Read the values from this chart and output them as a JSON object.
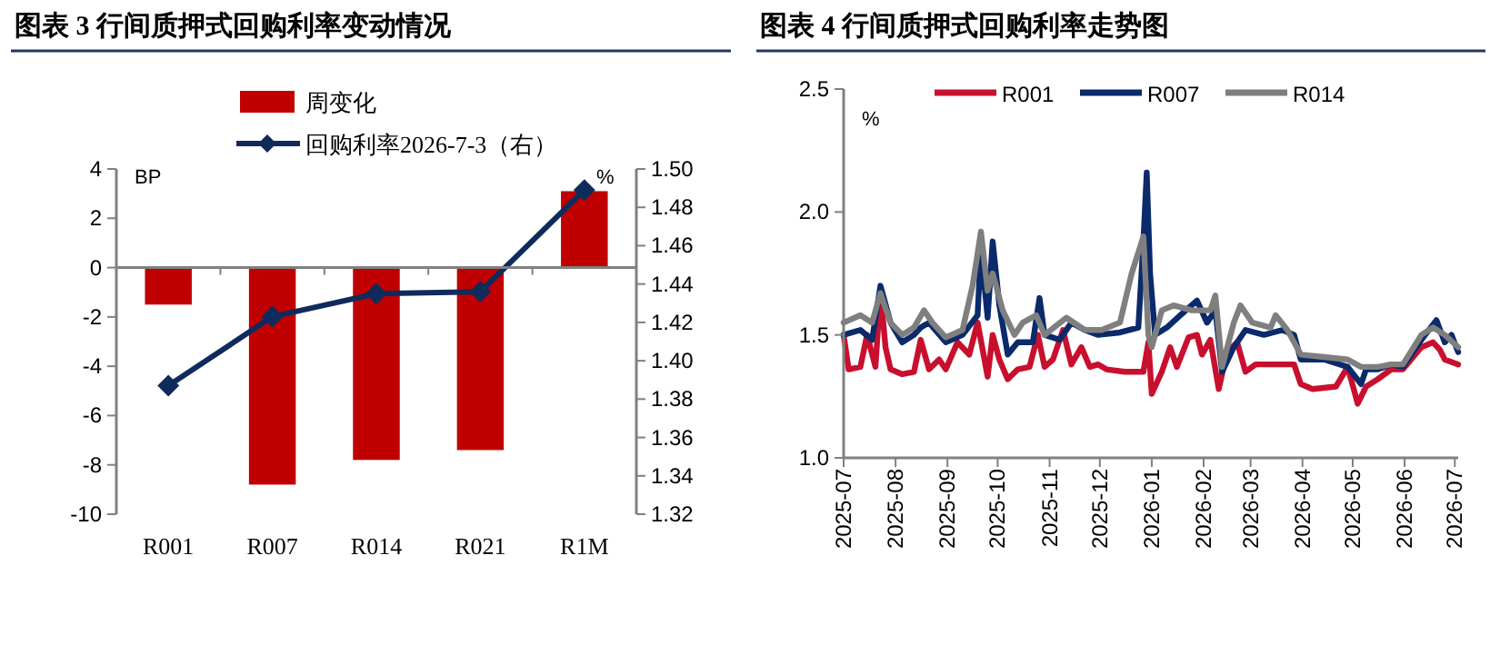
{
  "chart_data": [
    {
      "type": "bar",
      "title": "图表 3 行间质押式回购利率变动情况",
      "ylabel": "BP",
      "y2label": "%",
      "categories": [
        "R001",
        "R007",
        "R014",
        "R021",
        "R1M"
      ],
      "series": [
        {
          "name": "周变化",
          "color": "#c00000",
          "values": [
            -1.5,
            -8.8,
            -7.8,
            -7.4,
            3.1
          ]
        },
        {
          "name": "回购利率2026-7-3（右）",
          "type": "line",
          "axis": "y2",
          "color": "#0f2b5b",
          "values": [
            1.387,
            1.423,
            1.435,
            1.436,
            1.489
          ]
        }
      ],
      "ylim": [
        -10,
        4
      ],
      "yticks": [
        -10,
        -8,
        -6,
        -4,
        -2,
        0,
        2,
        4
      ],
      "y2lim": [
        1.32,
        1.5
      ],
      "y2ticks": [
        {
          "value": 1.32,
          "label": "1.32"
        },
        {
          "value": 1.34,
          "label": "1.34"
        },
        {
          "value": 1.36,
          "label": "1.36"
        },
        {
          "value": 1.38,
          "label": "1.38"
        },
        {
          "value": 1.4,
          "label": "1.40"
        },
        {
          "value": 1.42,
          "label": "1.42"
        },
        {
          "value": 1.44,
          "label": "1.44"
        },
        {
          "value": 1.46,
          "label": "1.46"
        },
        {
          "value": 1.48,
          "label": "1.48"
        },
        {
          "value": 1.5,
          "label": "1.50"
        }
      ],
      "marker": "diamond",
      "legend": "top"
    },
    {
      "type": "line",
      "title": "图表 4 行间质押式回购利率走势图",
      "ylabel": "%",
      "series": [
        {
          "name": "R001",
          "color": "#c8102e",
          "x": [
            "2025-07-01",
            "2025-07-04",
            "2025-07-11",
            "2025-07-15",
            "2025-07-20",
            "2025-07-23",
            "2025-07-26",
            "2025-07-29",
            "2025-08-05",
            "2025-08-12",
            "2025-08-16",
            "2025-08-21",
            "2025-08-27",
            "2025-08-31",
            "2025-09-07",
            "2025-09-14",
            "2025-09-19",
            "2025-09-25",
            "2025-09-28",
            "2025-10-02",
            "2025-10-07",
            "2025-10-13",
            "2025-10-20",
            "2025-10-25",
            "2025-10-29",
            "2025-11-03",
            "2025-11-09",
            "2025-11-14",
            "2025-11-20",
            "2025-11-25",
            "2025-11-30",
            "2025-12-05",
            "2025-12-16",
            "2025-12-27",
            "2025-12-30",
            "2026-01-01",
            "2026-01-07",
            "2026-01-12",
            "2026-01-16",
            "2026-01-23",
            "2026-01-28",
            "2026-01-31",
            "2026-02-05",
            "2026-02-10",
            "2026-02-15",
            "2026-02-21",
            "2026-02-26",
            "2026-03-04",
            "2026-03-16",
            "2026-03-27",
            "2026-03-31",
            "2026-04-07",
            "2026-04-21",
            "2026-04-28",
            "2026-05-04",
            "2026-05-09",
            "2026-05-16",
            "2026-05-24",
            "2026-05-31",
            "2026-06-11",
            "2026-06-18",
            "2026-06-22",
            "2026-06-25",
            "2026-07-03"
          ],
          "values": [
            1.5,
            1.36,
            1.37,
            1.5,
            1.37,
            1.68,
            1.45,
            1.36,
            1.34,
            1.35,
            1.48,
            1.36,
            1.4,
            1.36,
            1.47,
            1.42,
            1.55,
            1.33,
            1.5,
            1.4,
            1.32,
            1.36,
            1.37,
            1.5,
            1.37,
            1.4,
            1.52,
            1.38,
            1.45,
            1.37,
            1.38,
            1.36,
            1.35,
            1.35,
            1.47,
            1.26,
            1.35,
            1.45,
            1.37,
            1.49,
            1.5,
            1.42,
            1.48,
            1.28,
            1.43,
            1.47,
            1.35,
            1.38,
            1.38,
            1.38,
            1.3,
            1.28,
            1.29,
            1.37,
            1.22,
            1.29,
            1.32,
            1.36,
            1.36,
            1.45,
            1.47,
            1.44,
            1.4,
            1.38
          ]
        },
        {
          "name": "R007",
          "color": "#0a2a6b",
          "x": [
            "2025-07-01",
            "2025-07-11",
            "2025-07-18",
            "2025-07-23",
            "2025-07-29",
            "2025-08-05",
            "2025-08-12",
            "2025-08-16",
            "2025-08-21",
            "2025-08-31",
            "2025-09-10",
            "2025-09-19",
            "2025-09-21",
            "2025-09-25",
            "2025-09-28",
            "2025-10-02",
            "2025-10-07",
            "2025-10-13",
            "2025-10-22",
            "2025-10-26",
            "2025-10-29",
            "2025-11-07",
            "2025-11-14",
            "2025-11-22",
            "2025-11-30",
            "2025-12-13",
            "2025-12-24",
            "2025-12-27",
            "2025-12-29",
            "2025-12-31",
            "2026-01-03",
            "2026-01-10",
            "2026-01-18",
            "2026-01-28",
            "2026-02-03",
            "2026-02-08",
            "2026-02-12",
            "2026-02-19",
            "2026-02-26",
            "2026-03-09",
            "2026-03-20",
            "2026-03-27",
            "2026-03-31",
            "2026-04-14",
            "2026-04-28",
            "2026-05-06",
            "2026-05-09",
            "2026-05-16",
            "2026-05-24",
            "2026-05-31",
            "2026-06-11",
            "2026-06-20",
            "2026-06-25",
            "2026-06-29",
            "2026-07-03"
          ],
          "values": [
            1.5,
            1.52,
            1.48,
            1.7,
            1.55,
            1.47,
            1.5,
            1.53,
            1.55,
            1.47,
            1.5,
            1.58,
            1.85,
            1.57,
            1.88,
            1.62,
            1.42,
            1.47,
            1.47,
            1.65,
            1.5,
            1.48,
            1.55,
            1.52,
            1.5,
            1.51,
            1.53,
            1.88,
            2.16,
            1.75,
            1.5,
            1.53,
            1.58,
            1.64,
            1.55,
            1.6,
            1.35,
            1.45,
            1.52,
            1.5,
            1.52,
            1.5,
            1.4,
            1.4,
            1.37,
            1.3,
            1.36,
            1.36,
            1.38,
            1.37,
            1.48,
            1.56,
            1.47,
            1.5,
            1.43
          ]
        },
        {
          "name": "R014",
          "color": "#7f7f7f",
          "x": [
            "2025-07-01",
            "2025-07-11",
            "2025-07-18",
            "2025-07-23",
            "2025-07-29",
            "2025-08-05",
            "2025-08-12",
            "2025-08-18",
            "2025-08-23",
            "2025-08-31",
            "2025-09-10",
            "2025-09-16",
            "2025-09-21",
            "2025-09-25",
            "2025-09-28",
            "2025-10-04",
            "2025-10-11",
            "2025-10-16",
            "2025-10-24",
            "2025-10-29",
            "2025-11-11",
            "2025-11-22",
            "2025-12-02",
            "2025-12-13",
            "2025-12-20",
            "2025-12-27",
            "2025-12-30",
            "2026-01-01",
            "2026-01-07",
            "2026-01-14",
            "2026-01-25",
            "2026-02-05",
            "2026-02-08",
            "2026-02-12",
            "2026-02-19",
            "2026-02-23",
            "2026-03-02",
            "2026-03-13",
            "2026-03-16",
            "2026-03-23",
            "2026-03-31",
            "2026-04-14",
            "2026-04-28",
            "2026-05-06",
            "2026-05-16",
            "2026-05-24",
            "2026-05-31",
            "2026-06-11",
            "2026-06-18",
            "2026-06-25",
            "2026-07-03"
          ],
          "values": [
            1.55,
            1.58,
            1.55,
            1.67,
            1.55,
            1.5,
            1.53,
            1.6,
            1.55,
            1.49,
            1.52,
            1.7,
            1.92,
            1.68,
            1.75,
            1.6,
            1.5,
            1.55,
            1.58,
            1.5,
            1.57,
            1.52,
            1.52,
            1.55,
            1.75,
            1.9,
            1.5,
            1.45,
            1.6,
            1.62,
            1.6,
            1.6,
            1.66,
            1.37,
            1.55,
            1.62,
            1.55,
            1.53,
            1.58,
            1.52,
            1.42,
            1.41,
            1.4,
            1.37,
            1.37,
            1.38,
            1.38,
            1.5,
            1.53,
            1.5,
            1.45
          ]
        }
      ],
      "xlim": [
        "2025-07-01",
        "2026-07-03"
      ],
      "xticks": [
        "2025-07",
        "2025-08",
        "2025-09",
        "2025-10",
        "2025-11",
        "2025-12",
        "2026-01",
        "2026-02",
        "2026-03",
        "2026-04",
        "2026-05",
        "2026-06",
        "2026-07"
      ],
      "ylim": [
        1,
        2.5
      ],
      "yticks": [
        {
          "value": 1,
          "label": "1.0"
        },
        {
          "value": 1.5,
          "label": "1.5"
        },
        {
          "value": 2,
          "label": "2.0"
        },
        {
          "value": 2.5,
          "label": "2.5"
        }
      ],
      "legend": "top"
    }
  ]
}
